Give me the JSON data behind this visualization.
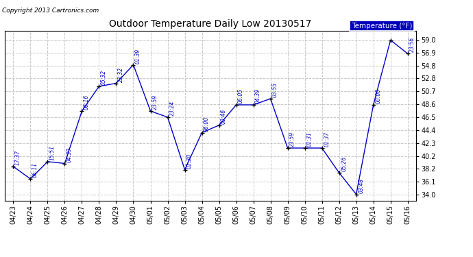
{
  "title": "Outdoor Temperature Daily Low 20130517",
  "copyright": "Copyright 2013 Cartronics.com",
  "legend_label": "Temperature (°F)",
  "background_color": "#ffffff",
  "plot_bg_color": "#ffffff",
  "grid_color": "#c8c8c8",
  "line_color": "#0000cc",
  "text_color": "#0000cc",
  "dates": [
    "04/23",
    "04/24",
    "04/25",
    "04/26",
    "04/27",
    "04/28",
    "04/29",
    "04/30",
    "05/01",
    "05/02",
    "05/03",
    "05/04",
    "05/05",
    "05/06",
    "05/07",
    "05/08",
    "05/09",
    "05/10",
    "05/11",
    "05/12",
    "05/13",
    "05/14",
    "05/15",
    "05/16"
  ],
  "values": [
    38.5,
    36.5,
    39.3,
    39.0,
    47.5,
    51.5,
    52.0,
    55.0,
    47.5,
    46.5,
    38.0,
    44.0,
    45.2,
    48.5,
    48.5,
    49.5,
    41.5,
    41.5,
    41.5,
    37.5,
    34.0,
    48.5,
    59.0,
    56.8
  ],
  "annotations": [
    "17:37",
    "06:11",
    "15:51",
    "04:39",
    "06:16",
    "05:32",
    "23:32",
    "01:39",
    "23:59",
    "23:24",
    "01:30",
    "06:00",
    "00:46",
    "06:05",
    "04:39",
    "03:55",
    "23:59",
    "01:31",
    "01:37",
    "05:26",
    "03:48",
    "00:00",
    "",
    "23:56"
  ],
  "ylim": [
    33.0,
    60.5
  ],
  "yticks": [
    34.0,
    36.1,
    38.2,
    40.2,
    42.3,
    44.4,
    46.5,
    48.6,
    50.7,
    52.8,
    54.8,
    56.9,
    59.0
  ]
}
